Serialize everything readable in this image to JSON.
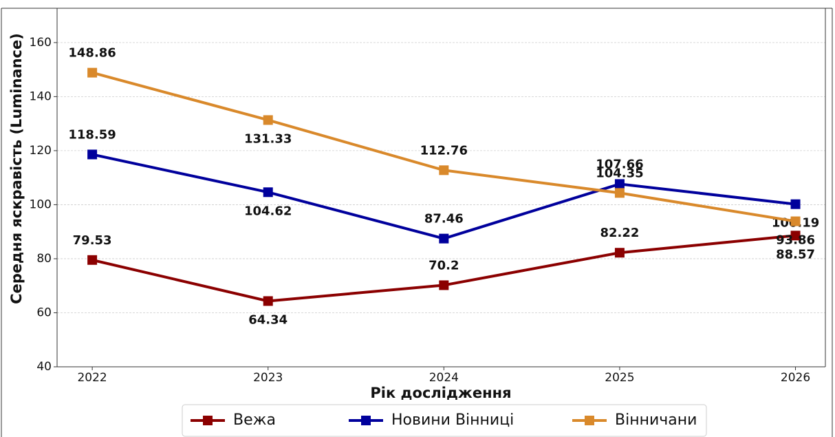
{
  "chart_data": {
    "type": "line",
    "x_label": "Рік дослідження",
    "y_label": "Середня яскравість (Luminance)",
    "x": [
      2022,
      2023,
      2024,
      2025,
      2026
    ],
    "xlim": [
      2021.8,
      2026.17
    ],
    "xticks": [
      2022,
      2023,
      2024,
      2025,
      2026
    ],
    "ylim": [
      40,
      172.7
    ],
    "yticks": [
      40,
      60,
      80,
      100,
      120,
      140,
      160
    ],
    "grid": true,
    "legend": "bottom",
    "series": [
      {
        "name": "Вежа",
        "color": "#8b0000",
        "values": [
          79.53,
          64.34,
          70.2,
          82.22,
          88.57
        ]
      },
      {
        "name": "Новини Вінниці",
        "color": "#00009c",
        "values": [
          118.59,
          104.62,
          87.46,
          107.66,
          100.19
        ]
      },
      {
        "name": "Вінничани",
        "color": "#d9892b",
        "values": [
          148.86,
          131.33,
          112.76,
          104.35,
          93.86
        ]
      }
    ]
  }
}
